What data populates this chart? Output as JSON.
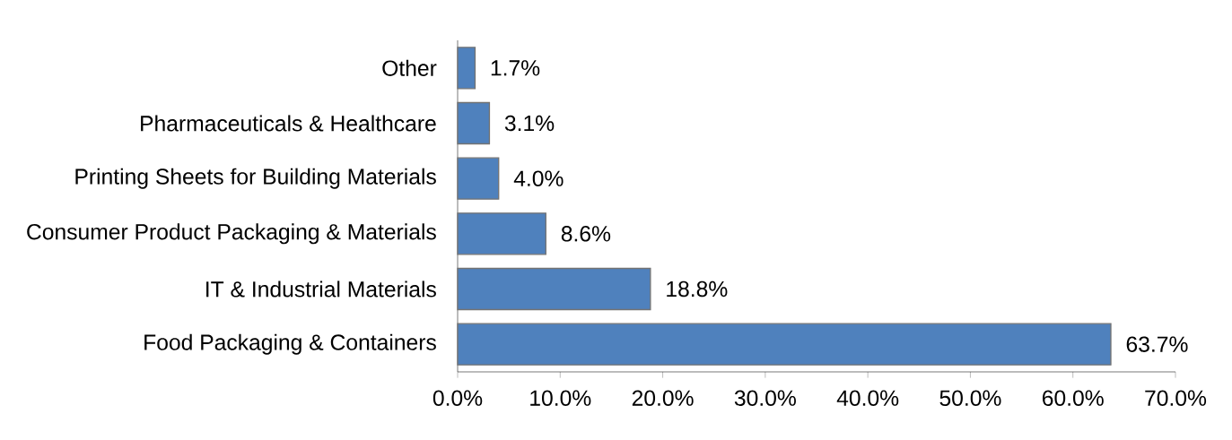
{
  "chart_data": {
    "type": "bar",
    "orientation": "horizontal",
    "categories": [
      "Other",
      "Pharmaceuticals & Healthcare",
      "Printing Sheets for Building Materials",
      "Consumer Product Packaging & Materials",
      "IT & Industrial Materials",
      "Food Packaging & Containers"
    ],
    "values": [
      1.7,
      3.1,
      4.0,
      8.6,
      18.8,
      63.7
    ],
    "value_labels": [
      "1.7%",
      "3.1%",
      "4.0%",
      "8.6%",
      "18.8%",
      "63.7%"
    ],
    "color": "#4f81bd",
    "xlim": [
      0,
      70
    ],
    "xticks": [
      {
        "value": 0,
        "label": "0.0%"
      },
      {
        "value": 10,
        "label": "10.0%"
      },
      {
        "value": 20,
        "label": "20.0%"
      },
      {
        "value": 30,
        "label": "30.0%"
      },
      {
        "value": 40,
        "label": "40.0%"
      },
      {
        "value": 50,
        "label": "50.0%"
      },
      {
        "value": 60,
        "label": "60.0%"
      },
      {
        "value": 70,
        "label": "70.0%"
      }
    ],
    "line_style": "solid"
  }
}
